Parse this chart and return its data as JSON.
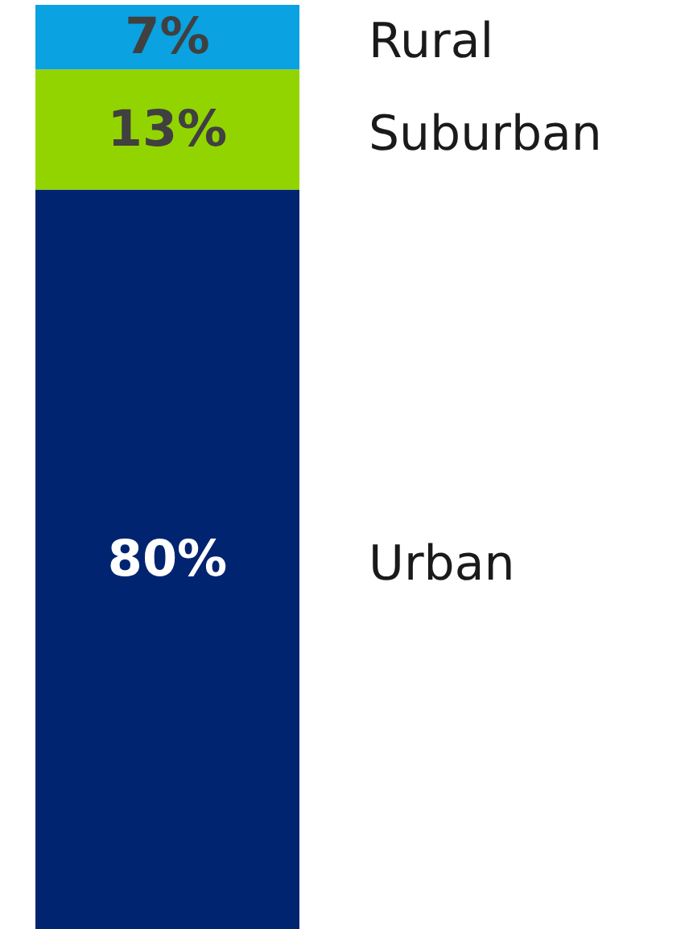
{
  "chart_data": {
    "type": "bar",
    "stacked": true,
    "categories": [
      null
    ],
    "legend": false,
    "series": [
      {
        "name": "Urban",
        "color": "#002470",
        "values": [
          80
        ],
        "value_labels": [
          "80%"
        ]
      },
      {
        "name": "Suburban",
        "color": "#92d400",
        "values": [
          13
        ],
        "value_labels": [
          "13%"
        ]
      },
      {
        "name": "Rural",
        "color": "#0aa2e0",
        "values": [
          7
        ],
        "value_labels": [
          "7%"
        ]
      }
    ]
  }
}
